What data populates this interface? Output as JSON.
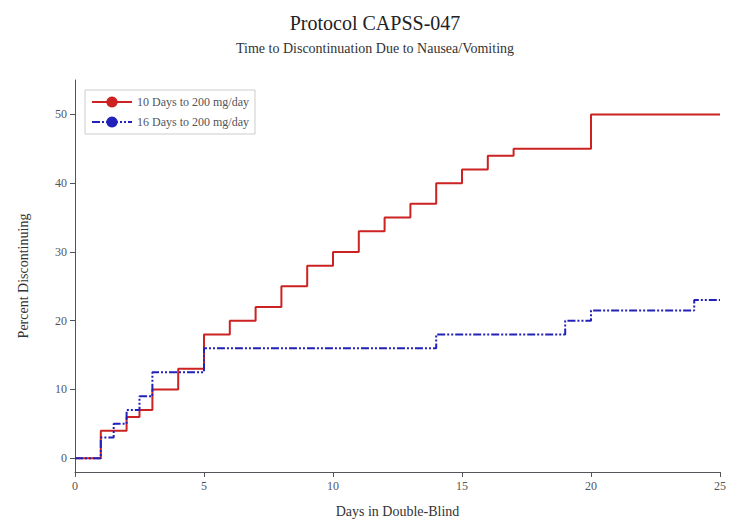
{
  "chart_data": {
    "type": "line",
    "title": "Protocol CAPSS-047",
    "subtitle": "Time to Discontinuation Due to Nausea/Vomiting",
    "xlabel": "Days in Double-Blind",
    "ylabel": "Percent Discontinuing",
    "xlim": [
      0,
      25
    ],
    "ylim": [
      -2,
      55
    ],
    "xticks": [
      0,
      5,
      10,
      15,
      20,
      25
    ],
    "yticks": [
      0,
      10,
      20,
      30,
      40,
      50
    ],
    "grid": false,
    "legend": "upper left",
    "series": [
      {
        "name": "10 Days to 200 mg/day",
        "color": "#cc2222",
        "line_style": "solid",
        "x": [
          0,
          1,
          1,
          2,
          2,
          2.5,
          2.5,
          3,
          3,
          4,
          4,
          5,
          5,
          6,
          6,
          7,
          7,
          8,
          8,
          9,
          9,
          10,
          10,
          11,
          11,
          12,
          12,
          13,
          13,
          14,
          14,
          15,
          15,
          16,
          16,
          17,
          17,
          18,
          18,
          19,
          19,
          20,
          20,
          21,
          21,
          22,
          22,
          23,
          23,
          24,
          24,
          25
        ],
        "values": [
          0,
          0,
          4,
          4,
          6,
          6,
          7,
          7,
          10,
          10,
          13,
          13,
          18,
          18,
          20,
          20,
          22,
          22,
          25,
          25,
          28,
          28,
          30,
          30,
          33,
          33,
          35,
          35,
          37,
          37,
          40,
          40,
          42,
          42,
          44,
          44,
          45,
          45,
          45,
          45,
          45,
          45,
          50,
          50,
          50,
          50,
          50,
          50,
          50,
          50,
          50,
          50
        ]
      },
      {
        "name": "16 Days to 200 mg/day",
        "color": "#2222bb",
        "line_style": "dashdot",
        "x": [
          0,
          1,
          1,
          1.5,
          1.5,
          2,
          2,
          2.5,
          2.5,
          3,
          3,
          4,
          4,
          5,
          5,
          6,
          6,
          14,
          14,
          15,
          15,
          19,
          19,
          20,
          20,
          24,
          24,
          25
        ],
        "values": [
          0,
          0,
          3,
          3,
          5,
          5,
          7,
          7,
          9,
          9,
          12.5,
          12.5,
          12.5,
          12.5,
          16,
          16,
          16,
          16,
          18,
          18,
          18,
          18,
          20,
          20,
          21.5,
          21.5,
          23,
          23
        ]
      }
    ]
  }
}
